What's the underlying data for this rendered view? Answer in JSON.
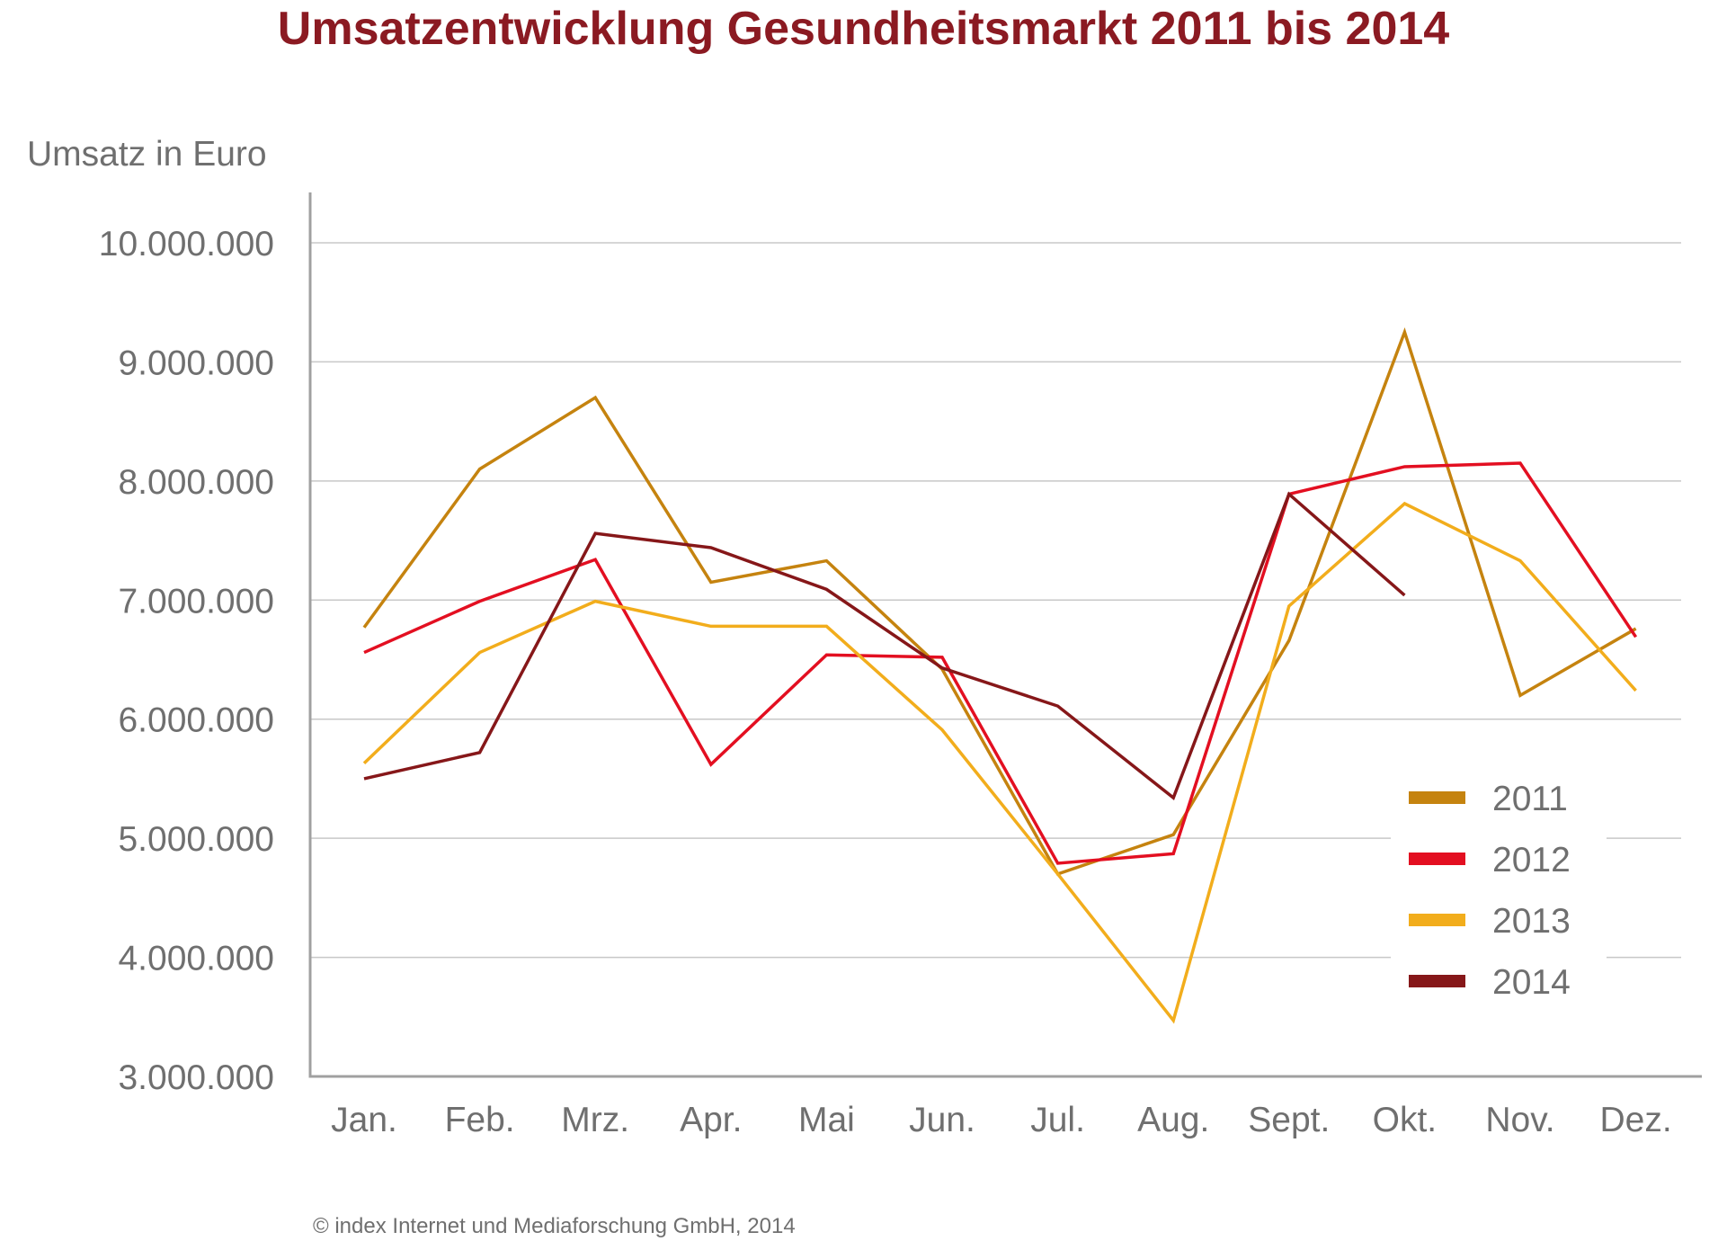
{
  "chart_data": {
    "type": "line",
    "title": "Umsatzentwicklung Gesundheitsmarkt 2011 bis 2014",
    "xlabel": "",
    "ylabel": "Umsatz in Euro",
    "categories": [
      "Jan.",
      "Feb.",
      "Mrz.",
      "Apr.",
      "Mai",
      "Jun.",
      "Jul.",
      "Aug.",
      "Sept.",
      "Okt.",
      "Nov.",
      "Dez."
    ],
    "ylim": [
      3000000,
      10000000
    ],
    "yticks": [
      3000000,
      4000000,
      5000000,
      6000000,
      7000000,
      8000000,
      9000000,
      10000000
    ],
    "ytick_labels": [
      "3.000.000",
      "4.000.000",
      "5.000.000",
      "6.000.000",
      "7.000.000",
      "8.000.000",
      "9.000.000",
      "10.000.000"
    ],
    "grid": true,
    "legend_position": "bottom-right",
    "series": [
      {
        "name": "2011",
        "color": "#c5830f",
        "values": [
          6770000,
          8100000,
          8700000,
          7150000,
          7330000,
          6420000,
          4700000,
          5030000,
          6660000,
          9250000,
          6200000,
          6760000
        ]
      },
      {
        "name": "2012",
        "color": "#e30f21",
        "values": [
          6560000,
          6990000,
          7340000,
          5620000,
          6540000,
          6520000,
          4790000,
          4870000,
          7890000,
          8120000,
          8150000,
          6690000
        ]
      },
      {
        "name": "2013",
        "color": "#f2ad1c",
        "values": [
          5630000,
          6560000,
          6990000,
          6780000,
          6780000,
          5910000,
          4700000,
          3470000,
          6950000,
          7810000,
          7330000,
          6240000
        ]
      },
      {
        "name": "2014",
        "color": "#861719",
        "values": [
          5500000,
          5720000,
          7560000,
          7440000,
          7090000,
          6430000,
          6110000,
          5340000,
          7890000,
          7040000,
          null,
          null
        ]
      }
    ]
  },
  "footer": "© index Internet und Mediaforschung GmbH, 2014"
}
